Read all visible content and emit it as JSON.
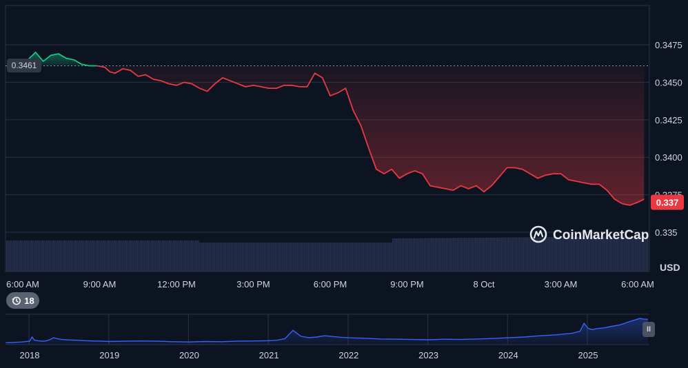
{
  "chart_data": {
    "type": "line",
    "ylabel": "USD",
    "ylim": [
      0.3345,
      0.3497
    ],
    "y_ticks": [
      "0.335",
      "0.3375",
      "0.3400",
      "0.3425",
      "0.3450",
      "0.3475"
    ],
    "y_tick_values": [
      0.335,
      0.3375,
      0.34,
      0.3425,
      0.345,
      0.3475
    ],
    "x_ticks": [
      "6:00 AM",
      "9:00 AM",
      "12:00 PM",
      "3:00 PM",
      "6:00 PM",
      "9:00 PM",
      "8 Oct",
      "3:00 AM",
      "6:00 AM"
    ],
    "x_range_hours": [
      0,
      24.25
    ],
    "x_tick_hours": [
      0,
      3,
      6,
      9,
      12,
      15,
      18,
      21,
      24
    ],
    "reference_value": 0.3461,
    "reference_label": "0.3461",
    "current_price_label": "0.337",
    "current_price": 0.337,
    "price_series": {
      "x_hours": [
        -0.1,
        0.2,
        0.5,
        0.8,
        1.1,
        1.4,
        1.7,
        2.0,
        2.3,
        2.6,
        2.9,
        3.2,
        3.4,
        3.6,
        3.9,
        4.2,
        4.5,
        4.8,
        5.1,
        5.4,
        5.7,
        6.0,
        6.3,
        6.6,
        6.9,
        7.2,
        7.5,
        7.8,
        8.1,
        8.4,
        8.7,
        9.0,
        9.3,
        9.6,
        9.9,
        10.2,
        10.5,
        10.8,
        11.1,
        11.4,
        11.7,
        12.0,
        12.3,
        12.6,
        12.9,
        13.2,
        13.5,
        13.8,
        14.1,
        14.4,
        14.7,
        15.0,
        15.3,
        15.6,
        15.9,
        16.2,
        16.5,
        16.8,
        17.1,
        17.4,
        17.7,
        18.0,
        18.3,
        18.6,
        18.9,
        19.2,
        19.5,
        19.8,
        20.1,
        20.4,
        20.7,
        21.0,
        21.3,
        21.6,
        21.9,
        22.2,
        22.5,
        22.8,
        23.1,
        23.4,
        23.7,
        24.0,
        24.25
      ],
      "values": [
        0.3462,
        0.3465,
        0.347,
        0.3464,
        0.3468,
        0.3469,
        0.3466,
        0.3465,
        0.3462,
        0.3461,
        0.3461,
        0.346,
        0.3457,
        0.3456,
        0.3459,
        0.3458,
        0.3454,
        0.3455,
        0.3452,
        0.3451,
        0.3449,
        0.3448,
        0.345,
        0.3449,
        0.3446,
        0.3444,
        0.3449,
        0.3453,
        0.3451,
        0.3449,
        0.3447,
        0.3448,
        0.3447,
        0.3446,
        0.3446,
        0.3448,
        0.3448,
        0.3447,
        0.3447,
        0.3456,
        0.3453,
        0.3441,
        0.3443,
        0.3446,
        0.3431,
        0.3421,
        0.3406,
        0.3392,
        0.3389,
        0.3392,
        0.3386,
        0.3389,
        0.3391,
        0.3389,
        0.3381,
        0.338,
        0.3379,
        0.3378,
        0.3381,
        0.3379,
        0.3381,
        0.3377,
        0.3381,
        0.3387,
        0.3393,
        0.3393,
        0.3392,
        0.3389,
        0.3386,
        0.3388,
        0.3389,
        0.3389,
        0.3385,
        0.3384,
        0.3383,
        0.3382,
        0.3382,
        0.3378,
        0.3372,
        0.3369,
        0.3368,
        0.337,
        0.3372
      ]
    },
    "x_axis_years": [
      "2018",
      "2019",
      "2020",
      "2021",
      "2022",
      "2023",
      "2024",
      "2025"
    ],
    "history_series": {
      "x_years": [
        2017.7,
        2017.8,
        2017.9,
        2018.0,
        2018.03,
        2018.06,
        2018.1,
        2018.15,
        2018.2,
        2018.25,
        2018.3,
        2018.35,
        2018.4,
        2018.5,
        2018.6,
        2018.7,
        2018.8,
        2018.9,
        2019.0,
        2019.2,
        2019.4,
        2019.6,
        2019.8,
        2020.0,
        2020.2,
        2020.4,
        2020.6,
        2020.8,
        2021.0,
        2021.1,
        2021.2,
        2021.25,
        2021.3,
        2021.35,
        2021.4,
        2021.5,
        2021.6,
        2021.7,
        2021.8,
        2021.9,
        2022.0,
        2022.2,
        2022.4,
        2022.6,
        2022.8,
        2023.0,
        2023.2,
        2023.4,
        2023.6,
        2023.8,
        2024.0,
        2024.2,
        2024.4,
        2024.6,
        2024.8,
        2024.9,
        2024.95,
        2025.0,
        2025.05,
        2025.1,
        2025.2,
        2025.3,
        2025.4,
        2025.5,
        2025.6,
        2025.65,
        2025.7,
        2025.75
      ],
      "values": [
        0.02,
        0.03,
        0.05,
        0.08,
        0.25,
        0.12,
        0.1,
        0.08,
        0.09,
        0.14,
        0.22,
        0.18,
        0.15,
        0.13,
        0.12,
        0.1,
        0.09,
        0.08,
        0.07,
        0.08,
        0.09,
        0.08,
        0.06,
        0.05,
        0.07,
        0.06,
        0.08,
        0.09,
        0.1,
        0.12,
        0.18,
        0.35,
        0.52,
        0.4,
        0.28,
        0.22,
        0.25,
        0.3,
        0.27,
        0.24,
        0.22,
        0.2,
        0.17,
        0.16,
        0.15,
        0.14,
        0.16,
        0.15,
        0.17,
        0.19,
        0.22,
        0.25,
        0.3,
        0.34,
        0.4,
        0.48,
        0.8,
        0.6,
        0.55,
        0.58,
        0.62,
        0.68,
        0.74,
        0.85,
        0.95,
        1.0,
        0.97,
        0.96
      ]
    },
    "colors": {
      "background": "#0d1421",
      "up": "#16c784",
      "down": "#ea3943",
      "grid": "#2a3242",
      "volume": "#2a3556",
      "history_line": "#3861fb"
    }
  },
  "controls": {
    "history_count": "18",
    "history_icon": "history-icon",
    "pause_icon": "pause-icon",
    "pause_label": "II"
  },
  "brand": {
    "name": "CoinMarketCap",
    "logo_icon": "coinmarketcap-logo-icon"
  }
}
